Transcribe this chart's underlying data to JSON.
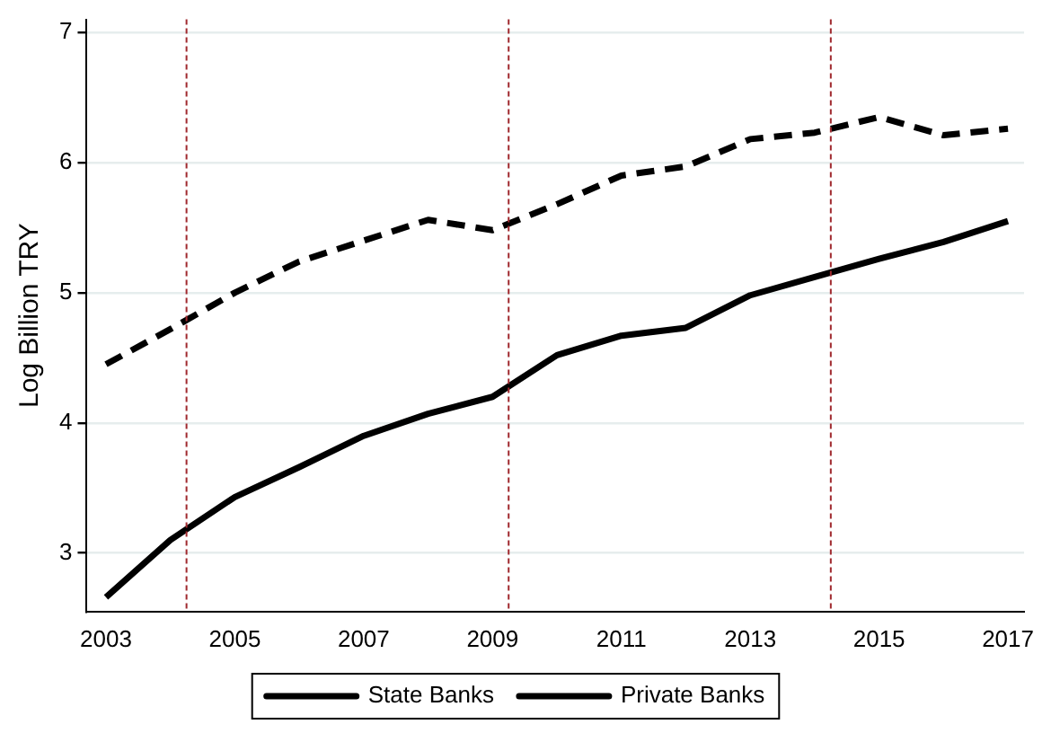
{
  "chart_data": {
    "type": "line",
    "ylabel": "Log Billion TRY",
    "x": [
      2003,
      2004,
      2005,
      2006,
      2007,
      2008,
      2009,
      2010,
      2011,
      2012,
      2013,
      2014,
      2015,
      2016,
      2017
    ],
    "series": [
      {
        "name": "State Banks",
        "color": "#000000",
        "line_style": "solid",
        "values": [
          2.66,
          3.1,
          3.43,
          3.66,
          3.9,
          4.07,
          4.2,
          4.52,
          4.67,
          4.73,
          4.98,
          5.12,
          5.26,
          5.39,
          5.55
        ]
      },
      {
        "name": "Private Banks",
        "color": "#000000",
        "line_style": "dashed",
        "values": [
          4.45,
          4.72,
          5.0,
          5.24,
          5.4,
          5.56,
          5.48,
          5.68,
          5.9,
          5.97,
          6.18,
          6.23,
          6.35,
          6.21,
          6.26
        ]
      }
    ],
    "xlim": [
      2002.7,
      2017.25
    ],
    "xticks": [
      2003,
      2005,
      2007,
      2009,
      2011,
      2013,
      2015,
      2017
    ],
    "ylim": [
      2.55,
      7.1
    ],
    "yticks": [
      3,
      4,
      5,
      6,
      7
    ],
    "ref_lines": [
      {
        "axis": "x",
        "value": 2004.25,
        "color": "#a0292e",
        "line_style": "dashed"
      },
      {
        "axis": "x",
        "value": 2009.25,
        "color": "#a0292e",
        "line_style": "dashed"
      },
      {
        "axis": "x",
        "value": 2014.25,
        "color": "#a0292e",
        "line_style": "dashed"
      }
    ],
    "grid": "y",
    "legend": "bottom",
    "marker": "none"
  }
}
